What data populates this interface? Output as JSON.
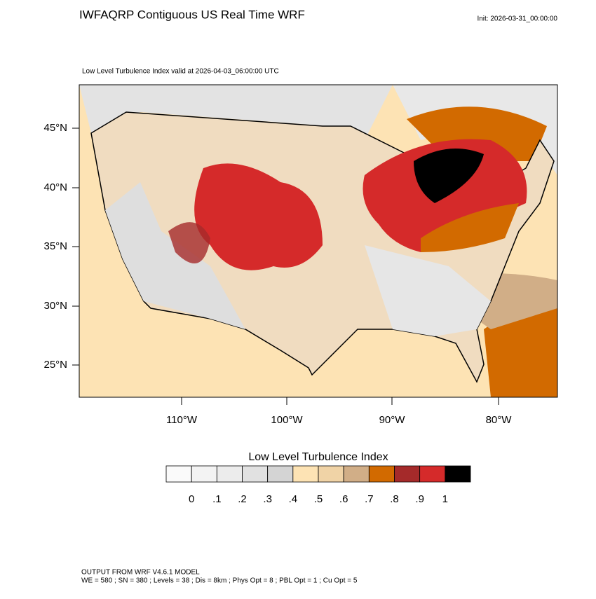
{
  "header": {
    "title": "IWFAQRP Contiguous US Real Time WRF",
    "init": "Init: 2026-03-31_00:00:00",
    "subtitle": "Low Level Turbulence Index valid at 2026-04-03_06:00:00 UTC"
  },
  "map": {
    "lat_labels": [
      "45°N",
      "40°N",
      "35°N",
      "30°N",
      "25°N"
    ],
    "lon_labels": [
      "110°W",
      "100°W",
      "90°W",
      "80°W"
    ]
  },
  "colorbar": {
    "title": "Low Level Turbulence Index",
    "colors": [
      "#fafafa",
      "#f3f3f3",
      "#ececec",
      "#e1e1e1",
      "#d4d4d4",
      "#fde3b4",
      "#f0d3a6",
      "#d1ae87",
      "#d26a00",
      "#a52a2a",
      "#d52a2a",
      "#000000"
    ],
    "labels": [
      "0",
      ".1",
      ".2",
      ".3",
      ".4",
      ".5",
      ".6",
      ".7",
      ".8",
      ".9",
      "1"
    ]
  },
  "footer": {
    "line1": "OUTPUT FROM WRF V4.6.1 MODEL",
    "line2": "WE = 580 ; SN = 380 ; Levels = 38 ; Dis = 8km ; Phys Opt = 8 ; PBL Opt = 1 ; Cu Opt = 5"
  }
}
